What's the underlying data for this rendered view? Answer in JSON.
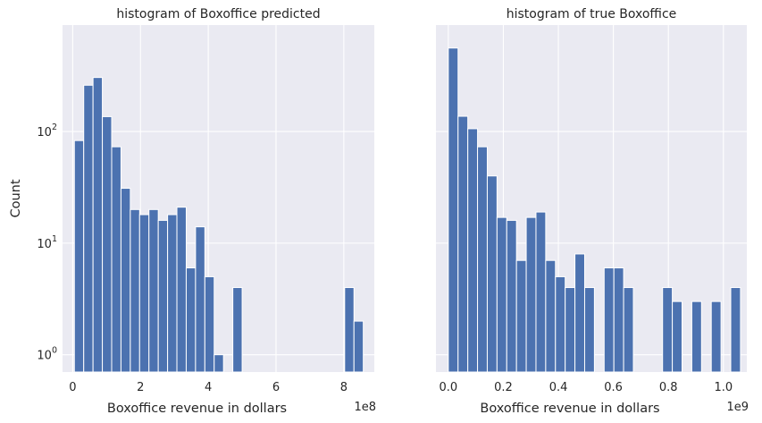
{
  "chart_data": [
    {
      "type": "bar",
      "title": "histogram of Boxoffice predicted",
      "xlabel": "Boxoffice revenue in dollars",
      "ylabel": "Count",
      "x_offset_label": "1e8",
      "yscale": "log",
      "ylim": [
        0.7,
        900
      ],
      "xlim": [
        -0.3,
        8.9
      ],
      "grid": true,
      "x_ticks": [
        {
          "value": 0,
          "label": "0"
        },
        {
          "value": 2,
          "label": "2"
        },
        {
          "value": 4,
          "label": "4"
        },
        {
          "value": 6,
          "label": "6"
        },
        {
          "value": 8,
          "label": "8"
        }
      ],
      "y_ticks": [
        {
          "value": 1,
          "base": "10",
          "exp": "0"
        },
        {
          "value": 10,
          "base": "10",
          "exp": "1"
        },
        {
          "value": 100,
          "base": "10",
          "exp": "2"
        }
      ],
      "bin_edges": [
        0.05,
        0.325,
        0.6,
        0.875,
        1.15,
        1.425,
        1.7,
        1.975,
        2.25,
        2.525,
        2.8,
        3.075,
        3.35,
        3.625,
        3.9,
        4.175,
        4.45,
        4.725,
        5.0,
        5.275,
        5.55,
        5.825,
        6.1,
        6.375,
        6.65,
        6.925,
        7.2,
        7.475,
        7.75,
        8.025,
        8.3,
        8.575
      ],
      "values": [
        83,
        260,
        305,
        136,
        73,
        31,
        20,
        18,
        20,
        16,
        18,
        21,
        6,
        14,
        5,
        1,
        0,
        4,
        0,
        0,
        0,
        0,
        0,
        0,
        0,
        0,
        0,
        0,
        0,
        4,
        2
      ]
    },
    {
      "type": "bar",
      "title": "histogram of true Boxoffice",
      "xlabel": "Boxoffice revenue in dollars",
      "ylabel": "",
      "x_offset_label": "1e9",
      "yscale": "log",
      "ylim": [
        0.7,
        900
      ],
      "xlim": [
        -0.045,
        1.085
      ],
      "grid": true,
      "x_ticks": [
        {
          "value": 0.0,
          "label": "0.0"
        },
        {
          "value": 0.2,
          "label": "0.2"
        },
        {
          "value": 0.4,
          "label": "0.4"
        },
        {
          "value": 0.6,
          "label": "0.6"
        },
        {
          "value": 0.8,
          "label": "0.8"
        },
        {
          "value": 1.0,
          "label": "1.0"
        }
      ],
      "y_ticks": [],
      "bin_edges": [
        0.0,
        0.0354,
        0.0708,
        0.1062,
        0.1416,
        0.177,
        0.2124,
        0.2478,
        0.2832,
        0.3186,
        0.354,
        0.3894,
        0.4248,
        0.4602,
        0.4956,
        0.531,
        0.5664,
        0.6018,
        0.6372,
        0.6726,
        0.708,
        0.7434,
        0.7788,
        0.8142,
        0.8496,
        0.885,
        0.9204,
        0.9558,
        0.9912,
        1.0266,
        1.062
      ],
      "values": [
        560,
        137,
        106,
        73,
        40,
        17,
        16,
        7,
        17,
        19,
        7,
        5,
        4,
        8,
        4,
        0,
        6,
        6,
        4,
        0,
        0,
        0,
        4,
        3,
        0,
        3,
        0,
        3,
        0,
        4
      ]
    }
  ]
}
